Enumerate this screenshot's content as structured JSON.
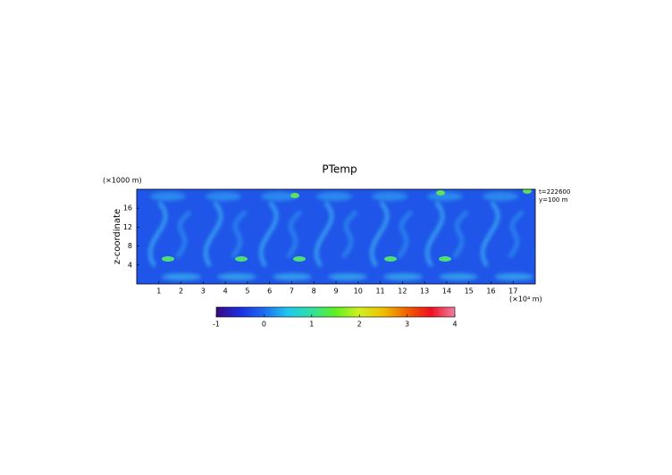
{
  "chart_data": {
    "type": "heatmap",
    "title": "PTemp",
    "y_unit": "(×1000 m)",
    "y_label": "z-coordinate",
    "x_unit": "(×10⁴ m)",
    "annotations": [
      "t=222600",
      "y=100 m"
    ],
    "xlim": [
      0,
      18
    ],
    "xticks": [
      1,
      2,
      3,
      4,
      5,
      6,
      7,
      8,
      9,
      10,
      11,
      12,
      13,
      14,
      15,
      16,
      17
    ],
    "ylim": [
      0,
      20
    ],
    "yticks": [
      4,
      8,
      12,
      16
    ],
    "colorbar": {
      "lim": [
        -1,
        4
      ],
      "ticks": [
        -1,
        0,
        1,
        2,
        3,
        4
      ],
      "colors": [
        "#3a0a80",
        "#1a2ee0",
        "#1e6cf0",
        "#20c8f0",
        "#30e0a0",
        "#60f020",
        "#d0f020",
        "#f0c000",
        "#f06000",
        "#f01020",
        "#f080a0"
      ]
    }
  }
}
